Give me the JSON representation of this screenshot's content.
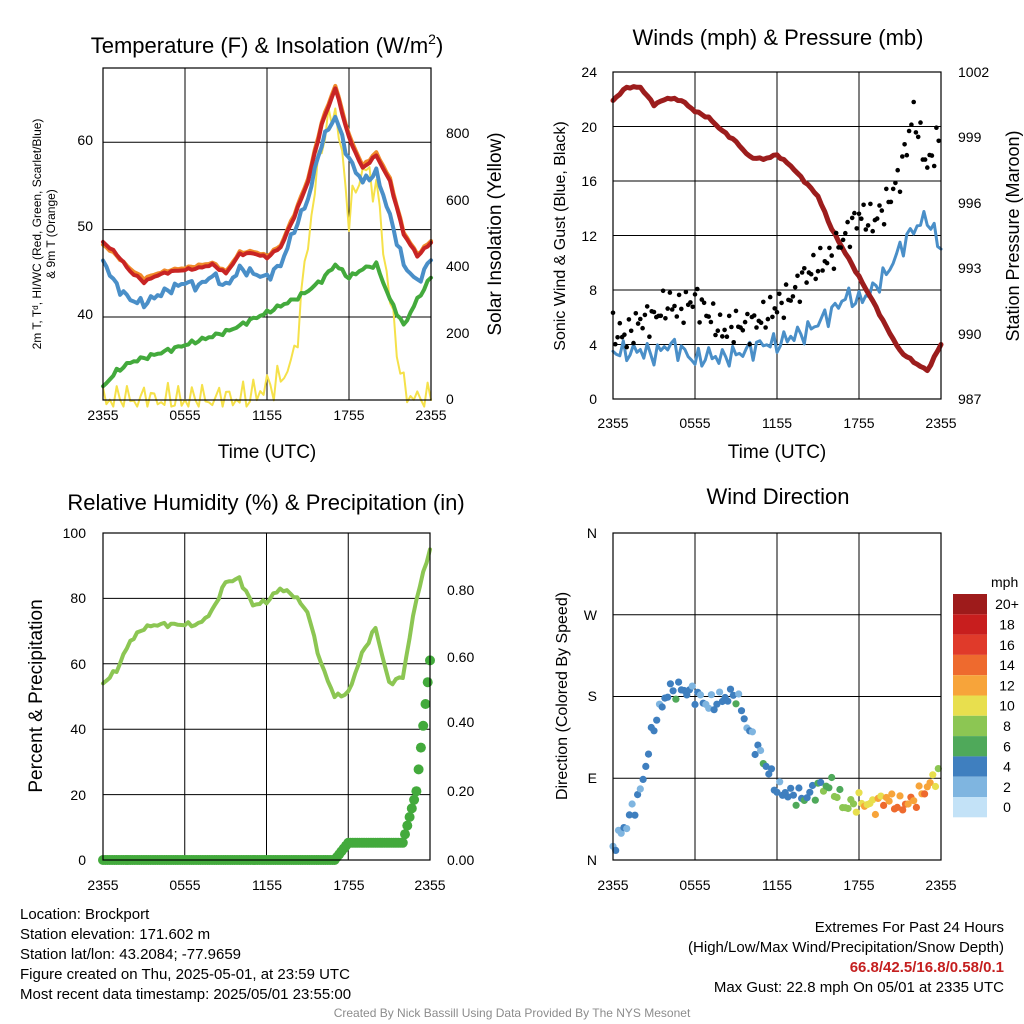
{
  "charts": {
    "temp": {
      "title": "Temperature (F) & Insolation (W/m",
      "title_sup": "2",
      "title_close": ")",
      "ylabel_lines": [
        "2m T, Tᵈ, HI/WC (Red, Green, Scarlet/Blue)",
        "& 9m T (Orange)"
      ],
      "y2label": "Solar Insolation (Yellow)",
      "xlabel": "Time (UTC)",
      "yticks": [
        "40",
        "50",
        "60"
      ],
      "y2ticks": [
        "0",
        "200",
        "400",
        "600",
        "800"
      ],
      "xticks": [
        "2355",
        "0555",
        "1155",
        "1755",
        "2355"
      ]
    },
    "wind": {
      "title": "Winds (mph) & Pressure (mb)",
      "ylabel": "Sonic Wind & Gust (Blue, Black)",
      "y2label": "Station Pressure (Maroon)",
      "xlabel": "Time (UTC)",
      "yticks": [
        "0",
        "4",
        "8",
        "12",
        "16",
        "20",
        "24"
      ],
      "y2ticks": [
        "987",
        "990",
        "993",
        "996",
        "999",
        "1002"
      ],
      "xticks": [
        "2355",
        "0555",
        "1155",
        "1755",
        "2355"
      ]
    },
    "rh": {
      "title": "Relative Humidity (%) & Precipitation (in)",
      "ylabel": "Percent & Precipitation",
      "yticks": [
        "0",
        "20",
        "40",
        "60",
        "80",
        "100"
      ],
      "y2ticks": [
        "0.00",
        "0.20",
        "0.40",
        "0.60",
        "0.80"
      ],
      "xticks": [
        "2355",
        "0555",
        "1155",
        "1755",
        "2355"
      ]
    },
    "dir": {
      "title": "Wind Direction",
      "ylabel": "Direction (Colored By Speed)",
      "yticks": [
        "N",
        "E",
        "S",
        "W",
        "N"
      ],
      "xticks": [
        "2355",
        "0555",
        "1155",
        "1755",
        "2355"
      ],
      "legend_title": "mph",
      "legend_labels": [
        "20+",
        "18",
        "16",
        "14",
        "12",
        "10",
        "8",
        "6",
        "4",
        "2",
        "0"
      ],
      "legend_colors": [
        "#9e1b1b",
        "#c81e1e",
        "#e03a2a",
        "#ee6a2e",
        "#f7a43a",
        "#e8df4e",
        "#8cc653",
        "#4fa95a",
        "#3f7fbf",
        "#7fb5e0",
        "#c3e2f7"
      ]
    }
  },
  "chart_data": [
    {
      "type": "line",
      "title": "Temperature (F) & Insolation (W/m2)",
      "xlabel": "Time (UTC)",
      "ylabel": "2m T, Td, HI/WC (Red, Green, Scarlet/Blue) & 9m T (Orange)",
      "y2label": "Solar Insolation (Yellow)",
      "x_hours": [
        0,
        1,
        2,
        3,
        4,
        5,
        6,
        7,
        8,
        9,
        10,
        11,
        12,
        13,
        14,
        15,
        16,
        17,
        18,
        19,
        20,
        21,
        22,
        23,
        24
      ],
      "ylim": [
        30.5,
        68.5
      ],
      "y2lim": [
        0,
        1000
      ],
      "series": [
        {
          "name": "2m T",
          "color": "#c82424",
          "values": [
            48.6,
            47.2,
            45.2,
            44.0,
            44.8,
            45.2,
            45.4,
            45.6,
            46.0,
            45.0,
            47.2,
            47.3,
            46.8,
            48.0,
            51.5,
            55.5,
            62.0,
            66.2,
            60.5,
            57.0,
            58.5,
            55.5,
            49.5,
            47.0,
            48.5
          ]
        },
        {
          "name": "9m T",
          "color": "#f08a2a",
          "values": [
            48.3,
            47.0,
            45.5,
            44.4,
            45.0,
            45.4,
            45.6,
            45.9,
            46.2,
            45.2,
            47.4,
            47.5,
            47.0,
            48.2,
            51.8,
            55.8,
            62.3,
            66.5,
            60.8,
            57.3,
            58.8,
            55.8,
            49.7,
            47.2,
            48.7
          ]
        },
        {
          "name": "HI/WC",
          "color": "#4a8fc8",
          "values": [
            46.5,
            43.5,
            42.0,
            41.5,
            42.5,
            43.2,
            44.0,
            43.5,
            44.8,
            43.5,
            45.5,
            45.0,
            44.5,
            46.0,
            50.0,
            53.5,
            60.0,
            63.0,
            58.0,
            55.5,
            56.5,
            51.5,
            46.0,
            44.0,
            46.5
          ]
        },
        {
          "name": "Td",
          "color": "#43aa3c",
          "values": [
            32.0,
            33.8,
            34.8,
            35.3,
            35.8,
            36.3,
            36.8,
            37.3,
            37.8,
            38.3,
            39.0,
            39.8,
            40.5,
            41.3,
            42.0,
            43.0,
            44.2,
            46.0,
            44.5,
            45.5,
            46.0,
            42.0,
            39.0,
            42.0,
            44.5
          ]
        },
        {
          "name": "Solar Insolation",
          "axis": "y2",
          "color": "#f5e14a",
          "values": [
            0,
            0,
            0,
            0,
            0,
            0,
            0,
            0,
            0,
            2,
            5,
            15,
            40,
            60,
            130,
            480,
            780,
            880,
            560,
            700,
            640,
            300,
            30,
            0,
            0
          ]
        }
      ]
    },
    {
      "type": "line",
      "title": "Winds (mph) & Pressure (mb)",
      "xlabel": "Time (UTC)",
      "ylabel": "Sonic Wind & Gust (Blue, Black)",
      "y2label": "Station Pressure (Maroon)",
      "x_hours": [
        0,
        1,
        2,
        3,
        4,
        5,
        6,
        7,
        8,
        9,
        10,
        11,
        12,
        13,
        14,
        15,
        16,
        17,
        18,
        19,
        20,
        21,
        22,
        23,
        24
      ],
      "ylim": [
        0,
        24
      ],
      "y2lim": [
        987,
        1002
      ],
      "series": [
        {
          "name": "Sonic Wind",
          "color": "#4a8fc8",
          "values": [
            3.5,
            3.4,
            3.6,
            3.2,
            4.0,
            3.6,
            2.8,
            3.2,
            3.0,
            3.3,
            3.6,
            4.1,
            4.0,
            4.6,
            4.8,
            5.6,
            6.4,
            7.5,
            7.2,
            8.0,
            9.2,
            11.0,
            12.5,
            13.3,
            11.0
          ]
        },
        {
          "name": "Station Pressure",
          "axis": "y2",
          "color": "#9c1d1d",
          "values": [
            1000.7,
            1001.3,
            1001.3,
            1000.5,
            1000.8,
            1000.7,
            1000.2,
            999.9,
            999.3,
            998.8,
            998.1,
            998.0,
            998.2,
            997.7,
            997.0,
            996.3,
            994.8,
            993.7,
            992.6,
            991.5,
            990.3,
            989.2,
            988.7,
            988.3,
            989.5
          ]
        },
        {
          "name": "Gust",
          "color": "#000000",
          "values": [
            5.0,
            4.6,
            5.8,
            6.0,
            7.0,
            6.6,
            7.4,
            6.2,
            5.0,
            5.4,
            5.4,
            6.0,
            6.8,
            7.5,
            9.0,
            9.8,
            10.5,
            12.0,
            13.5,
            13.0,
            14.2,
            16.5,
            21.0,
            17.0,
            19.5
          ]
        }
      ]
    },
    {
      "type": "line",
      "title": "Relative Humidity (%) & Precipitation (in)",
      "ylabel": "Percent & Precipitation",
      "x_hours": [
        0,
        1,
        2,
        3,
        4,
        5,
        6,
        7,
        8,
        9,
        10,
        11,
        12,
        13,
        14,
        15,
        16,
        17,
        18,
        19,
        20,
        21,
        22,
        23,
        24
      ],
      "ylim": [
        0,
        100
      ],
      "y2lim": [
        0,
        0.95
      ],
      "series": [
        {
          "name": "Relative Humidity",
          "color": "#8cc653",
          "values": [
            54,
            58,
            67,
            71,
            72,
            72,
            72,
            72,
            76,
            85,
            86,
            78,
            79,
            83,
            81,
            76,
            60,
            50,
            51,
            63,
            71,
            54,
            56,
            80,
            95
          ]
        },
        {
          "name": "Precipitation",
          "axis": "y2",
          "color": "#43aa3c",
          "values": [
            0,
            0,
            0,
            0,
            0,
            0,
            0,
            0,
            0,
            0,
            0,
            0,
            0,
            0,
            0,
            0,
            0,
            0,
            0.05,
            0.05,
            0.05,
            0.05,
            0.05,
            0.2,
            0.58
          ]
        }
      ]
    },
    {
      "type": "scatter",
      "title": "Wind Direction",
      "ylabel": "Direction (Colored By Speed)",
      "x_hours": [
        0,
        1,
        2,
        3,
        4,
        5,
        6,
        7,
        8,
        9,
        10,
        11,
        12,
        13,
        14,
        15,
        16,
        17,
        18,
        19,
        20,
        21,
        22,
        23,
        24
      ],
      "ylim": [
        0,
        360
      ],
      "series": [
        {
          "name": "Direction",
          "values": [
            15,
            40,
            75,
            150,
            185,
            188,
            183,
            170,
            178,
            182,
            140,
            110,
            78,
            72,
            68,
            80,
            82,
            58,
            64,
            60,
            68,
            60,
            65,
            80,
            100
          ]
        }
      ],
      "speed_mph": [
        2,
        3,
        3,
        4,
        4,
        4,
        3,
        3,
        3,
        4,
        3,
        4,
        4,
        4,
        4,
        6,
        7,
        8,
        10,
        11,
        12,
        14,
        13,
        12,
        8
      ]
    }
  ],
  "footer": {
    "location": "Location: Brockport",
    "elevation": "Station elevation: 171.602 m",
    "latlon": "Station lat/lon: 43.2084; -77.9659",
    "created": "Figure created on Thu, 2025-05-01, at 23:59 UTC",
    "recent": "Most recent data timestamp: 2025/05/01 23:55:00",
    "extremes_title": "Extremes For Past 24 Hours",
    "extremes_caption": "(High/Low/Max Wind/Precipitation/Snow Depth)",
    "extremes_values": "66.8/42.5/16.8/0.58/0.1",
    "max_gust": "Max Gust: 22.8 mph On 05/01 at 2335 UTC",
    "credit": "Created By Nick Bassill Using Data Provided By The NYS Mesonet"
  }
}
